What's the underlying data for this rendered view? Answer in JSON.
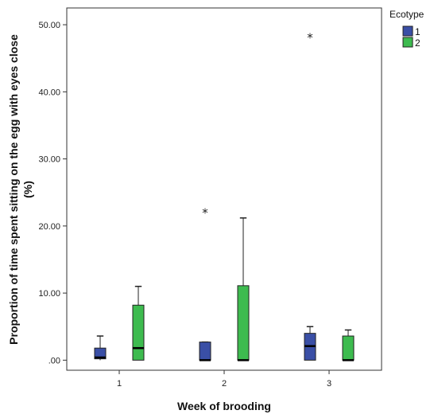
{
  "chart_data": {
    "type": "boxplot",
    "title": "",
    "xlabel": "Week of brooding",
    "ylabel": "Proportion of time spent sitting on the egg with eyes close (%)",
    "ylabel_lines": [
      "Proportion of time spent sitting on the egg with eyes close",
      "(%)"
    ],
    "ylim": [
      -1.5,
      52.5
    ],
    "yticks": [
      0,
      10,
      20,
      30,
      40,
      50
    ],
    "ytick_labels": [
      ".00",
      "10.00",
      "20.00",
      "30.00",
      "40.00",
      "50.00"
    ],
    "categories": [
      "1",
      "2",
      "3"
    ],
    "legend": {
      "title": "Ecotype",
      "position": "right"
    },
    "series": [
      {
        "name": "1",
        "color": "#3a4fa6",
        "boxes": [
          {
            "category": "1",
            "whisker_low": 0.0,
            "q1": 0.2,
            "median": 0.4,
            "q3": 1.8,
            "whisker_high": 3.6,
            "outliers": []
          },
          {
            "category": "2",
            "whisker_low": 0.0,
            "q1": 0.0,
            "median": 0.0,
            "q3": 2.7,
            "whisker_high": 2.7,
            "outliers": [
              22.2
            ]
          },
          {
            "category": "3",
            "whisker_low": 0.0,
            "q1": 0.0,
            "median": 2.1,
            "q3": 4.0,
            "whisker_high": 5.0,
            "outliers": [
              48.3
            ]
          }
        ]
      },
      {
        "name": "2",
        "color": "#3dbb4f",
        "boxes": [
          {
            "category": "1",
            "whisker_low": 0.0,
            "q1": 0.0,
            "median": 1.8,
            "q3": 8.2,
            "whisker_high": 11.0,
            "outliers": []
          },
          {
            "category": "2",
            "whisker_low": 0.0,
            "q1": 0.0,
            "median": 0.0,
            "q3": 11.1,
            "whisker_high": 21.2,
            "outliers": []
          },
          {
            "category": "3",
            "whisker_low": 0.0,
            "q1": 0.0,
            "median": 0.0,
            "q3": 3.6,
            "whisker_high": 4.5,
            "outliers": []
          }
        ]
      }
    ]
  }
}
